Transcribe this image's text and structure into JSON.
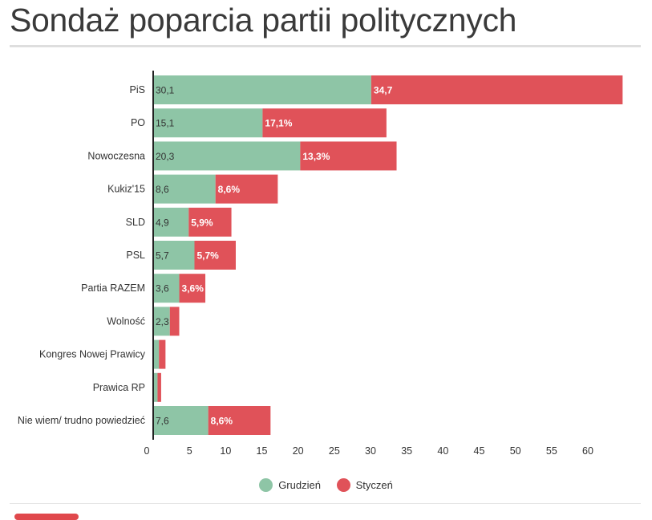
{
  "title": "Sondaż poparcia partii politycznych",
  "colors": {
    "grudzien": "#8ec5a6",
    "styczen": "#e05259",
    "axis": "#222222",
    "grid": "#ececec"
  },
  "legend": [
    {
      "label": "Grudzień",
      "color": "#8ec5a6"
    },
    {
      "label": "Styczeń",
      "color": "#e05259"
    }
  ],
  "chart_data": {
    "type": "bar",
    "orientation": "horizontal",
    "stacked": true,
    "categories": [
      "PiS",
      "PO",
      "Nowoczesna",
      "Kukiz'15",
      "SLD",
      "PSL",
      "Partia RAZEM",
      "Wolność",
      "Kongres Nowej Prawicy",
      "Prawica RP",
      "Nie wiem/ trudno powiedzieć"
    ],
    "series": [
      {
        "name": "Grudzień",
        "values": [
          30.1,
          15.1,
          20.3,
          8.6,
          4.9,
          5.7,
          3.6,
          2.3,
          0.8,
          0.6,
          7.6
        ],
        "labels": [
          "30,1",
          "15,1",
          "20,3",
          "8,6",
          "4,9",
          "5,7",
          "3,6",
          "2,3",
          "",
          "",
          "7,6"
        ]
      },
      {
        "name": "Styczeń",
        "values": [
          34.7,
          17.1,
          13.3,
          8.6,
          5.9,
          5.7,
          3.6,
          1.3,
          0.9,
          0.5,
          8.6
        ],
        "labels": [
          "34,7",
          "17,1%",
          "13,3%",
          "8,6%",
          "5,9%",
          "5,7%",
          "3,6%",
          "",
          "",
          "",
          "8,6%"
        ]
      }
    ],
    "xticks": [
      "0",
      "5",
      "10",
      "15",
      "20",
      "25",
      "30",
      "35",
      "40",
      "45",
      "50",
      "55",
      "60"
    ],
    "xlim": [
      0,
      65
    ],
    "xlabel": "",
    "ylabel": "",
    "grid": false,
    "legend_position": "bottom-center"
  }
}
